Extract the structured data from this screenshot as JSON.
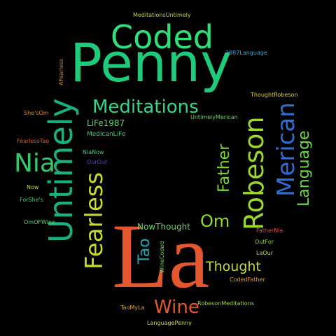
{
  "background": "#000000",
  "words": [
    {
      "text": "La",
      "color": "#e4572e",
      "weight": 100,
      "orientation": "horizontal"
    },
    {
      "text": "Penny",
      "color": "#1ecb7a",
      "weight": 60,
      "orientation": "horizontal"
    },
    {
      "text": "Untimely",
      "color": "#1ab27c",
      "weight": 48,
      "orientation": "vertical"
    },
    {
      "text": "Robeson",
      "color": "#9bd82d",
      "weight": 40,
      "orientation": "vertical"
    },
    {
      "text": "Coded",
      "color": "#2ee07a",
      "weight": 38,
      "orientation": "horizontal"
    },
    {
      "text": "Merican",
      "color": "#2b6fd6",
      "weight": 34,
      "orientation": "vertical"
    },
    {
      "text": "Fearless",
      "color": "#c9dc2a",
      "weight": 34,
      "orientation": "vertical"
    },
    {
      "text": "Nia",
      "color": "#35c96a",
      "weight": 32,
      "orientation": "horizontal"
    },
    {
      "text": "Meditations",
      "color": "#34d586",
      "weight": 26,
      "orientation": "horizontal"
    },
    {
      "text": "Om",
      "color": "#8ddb2f",
      "weight": 24,
      "orientation": "horizontal"
    },
    {
      "text": "Wine",
      "color": "#e4572e",
      "weight": 24,
      "orientation": "horizontal"
    },
    {
      "text": "Language",
      "color": "#6fd44a",
      "weight": 22,
      "orientation": "vertical"
    },
    {
      "text": "Father",
      "color": "#7bd830",
      "weight": 20,
      "orientation": "vertical"
    },
    {
      "text": "Tao",
      "color": "#22a6b3",
      "weight": 20,
      "orientation": "vertical"
    },
    {
      "text": "Thought",
      "color": "#c4d93a",
      "weight": 18,
      "orientation": "horizontal"
    },
    {
      "text": "NowThought",
      "color": "#5fd36b",
      "weight": 11,
      "orientation": "horizontal"
    },
    {
      "text": "LiFe1987",
      "color": "#5fd36b",
      "weight": 10,
      "orientation": "horizontal"
    },
    {
      "text": "MedicanLiFe",
      "color": "#4cc978",
      "weight": 8,
      "orientation": "horizontal"
    },
    {
      "text": "UntimelyMerican",
      "color": "#6ed35a",
      "weight": 8,
      "orientation": "horizontal"
    },
    {
      "text": "ThoughtRobeson",
      "color": "#d9d23a",
      "weight": 8,
      "orientation": "horizontal"
    },
    {
      "text": "1987Language",
      "color": "#3aa3e0",
      "weight": 8,
      "orientation": "horizontal"
    },
    {
      "text": "MeditationsUntimely",
      "color": "#b7d83a",
      "weight": 8,
      "orientation": "horizontal"
    },
    {
      "text": "AFearless",
      "color": "#c9842c",
      "weight": 8,
      "orientation": "vertical"
    },
    {
      "text": "She'sOm",
      "color": "#d88c2f",
      "weight": 8,
      "orientation": "horizontal"
    },
    {
      "text": "FearlessTao",
      "color": "#e4572e",
      "weight": 8,
      "orientation": "horizontal"
    },
    {
      "text": "NiaNow",
      "color": "#4cc98a",
      "weight": 8,
      "orientation": "horizontal"
    },
    {
      "text": "OurOut",
      "color": "#5b3fd6",
      "weight": 8,
      "orientation": "horizontal"
    },
    {
      "text": "Now",
      "color": "#c9d42c",
      "weight": 8,
      "orientation": "horizontal"
    },
    {
      "text": "ForShe's",
      "color": "#38d07a",
      "weight": 8,
      "orientation": "horizontal"
    },
    {
      "text": "OmOFWine",
      "color": "#57d26a",
      "weight": 8,
      "orientation": "horizontal"
    },
    {
      "text": "FatherNia",
      "color": "#e24c4c",
      "weight": 8,
      "orientation": "horizontal"
    },
    {
      "text": "OutFor",
      "color": "#8fd83a",
      "weight": 8,
      "orientation": "horizontal"
    },
    {
      "text": "LaOur",
      "color": "#c2d94a",
      "weight": 8,
      "orientation": "horizontal"
    },
    {
      "text": "CodedFather",
      "color": "#e0a030",
      "weight": 8,
      "orientation": "horizontal"
    },
    {
      "text": "WineCoded",
      "color": "#79d35a",
      "weight": 8,
      "orientation": "vertical"
    },
    {
      "text": "RobesonMeditations",
      "color": "#9fd83a",
      "weight": 8,
      "orientation": "horizontal"
    },
    {
      "text": "TaoMyLa",
      "color": "#e0a030",
      "weight": 8,
      "orientation": "horizontal"
    },
    {
      "text": "LanguagePenny",
      "color": "#d2d93a",
      "weight": 8,
      "orientation": "horizontal"
    }
  ]
}
